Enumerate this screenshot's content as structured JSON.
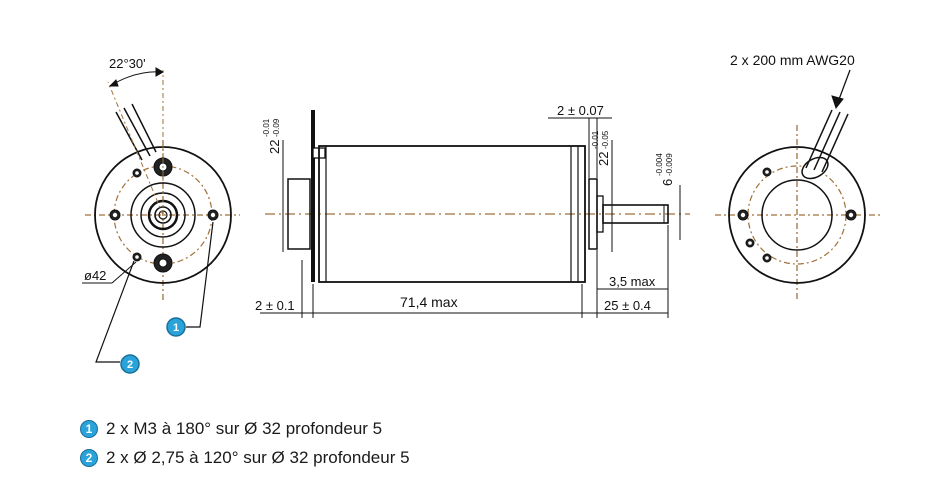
{
  "colors": {
    "line": "#111111",
    "centerline": "#a0703a",
    "badge": "#29a3d9"
  },
  "drawing": {
    "angle_label": "22°30'",
    "diameter_label": "ø42",
    "wire_label": "2 x 200 mm AWG20",
    "dim_flange_dia": "22",
    "dim_flange_dia_tol_upper": "-0.01",
    "dim_flange_dia_tol_lower": "-0.09",
    "dim_boss_dia": "22",
    "dim_boss_dia_tol_upper": "-0.01",
    "dim_boss_dia_tol_lower": "-0.05",
    "dim_shaft_dia": "6",
    "dim_shaft_dia_tol_upper": "-0.004",
    "dim_shaft_dia_tol_lower": "-0.009",
    "dim_top": "2 ± 0.07",
    "dim_left": "2 ± 0.1",
    "dim_length": "71,4 max",
    "dim_boss": "3,5 max",
    "dim_shaft_len": "25 ± 0.4",
    "callout_1": "1",
    "callout_2": "2"
  },
  "legend": [
    {
      "badge": "1",
      "text": "2 x M3 à 180° sur Ø 32 profondeur 5"
    },
    {
      "badge": "2",
      "text": "2 x Ø 2,75 à 120° sur Ø 32 profondeur 5"
    }
  ]
}
